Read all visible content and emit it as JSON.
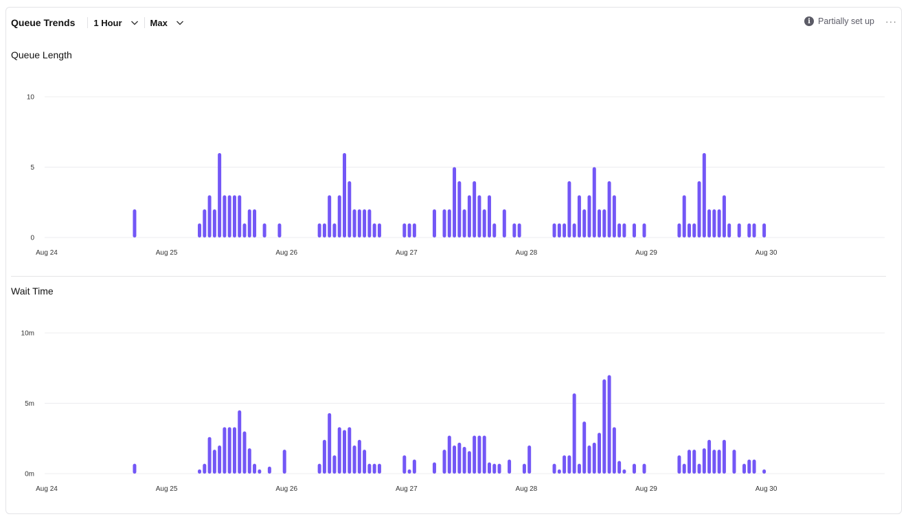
{
  "header": {
    "title": "Queue Trends",
    "interval": "1 Hour",
    "aggregation": "Max",
    "status": "Partially set up",
    "status_icon": "info-icon",
    "more_icon": "more-horizontal-icon"
  },
  "colors": {
    "bar": "#7357F6",
    "grid": "#ececef"
  },
  "chart_data": [
    {
      "type": "bar",
      "title": "Queue Length",
      "xlabel": "",
      "ylabel": "",
      "x_unit": "hour",
      "x_ticks": [
        "Aug 24",
        "Aug 25",
        "Aug 26",
        "Aug 27",
        "Aug 28",
        "Aug 29",
        "Aug 30"
      ],
      "y_ticks": [
        "0",
        "5",
        "10"
      ],
      "ylim": [
        0,
        10
      ],
      "grid": true,
      "x": [
        "Aug 24 18:00",
        "Aug 25 07:00",
        "Aug 25 08:00",
        "Aug 25 09:00",
        "Aug 25 10:00",
        "Aug 25 11:00",
        "Aug 25 12:00",
        "Aug 25 13:00",
        "Aug 25 14:00",
        "Aug 25 15:00",
        "Aug 25 16:00",
        "Aug 25 17:00",
        "Aug 25 18:00",
        "Aug 25 20:00",
        "Aug 25 23:00",
        "Aug 26 07:00",
        "Aug 26 08:00",
        "Aug 26 09:00",
        "Aug 26 10:00",
        "Aug 26 11:00",
        "Aug 26 12:00",
        "Aug 26 13:00",
        "Aug 26 14:00",
        "Aug 26 15:00",
        "Aug 26 16:00",
        "Aug 26 17:00",
        "Aug 26 18:00",
        "Aug 26 19:00",
        "Aug 27 00:00",
        "Aug 27 01:00",
        "Aug 27 02:00",
        "Aug 27 06:00",
        "Aug 27 08:00",
        "Aug 27 09:00",
        "Aug 27 10:00",
        "Aug 27 11:00",
        "Aug 27 12:00",
        "Aug 27 13:00",
        "Aug 27 14:00",
        "Aug 27 15:00",
        "Aug 27 16:00",
        "Aug 27 17:00",
        "Aug 27 18:00",
        "Aug 27 20:00",
        "Aug 27 22:00",
        "Aug 27 23:00",
        "Aug 28 06:00",
        "Aug 28 07:00",
        "Aug 28 08:00",
        "Aug 28 09:00",
        "Aug 28 10:00",
        "Aug 28 11:00",
        "Aug 28 12:00",
        "Aug 28 13:00",
        "Aug 28 14:00",
        "Aug 28 15:00",
        "Aug 28 16:00",
        "Aug 28 17:00",
        "Aug 28 18:00",
        "Aug 28 19:00",
        "Aug 28 20:00",
        "Aug 28 22:00",
        "Aug 29 00:00",
        "Aug 29 07:00",
        "Aug 29 08:00",
        "Aug 29 09:00",
        "Aug 29 10:00",
        "Aug 29 11:00",
        "Aug 29 12:00",
        "Aug 29 13:00",
        "Aug 29 14:00",
        "Aug 29 15:00",
        "Aug 29 16:00",
        "Aug 29 17:00",
        "Aug 29 19:00",
        "Aug 29 21:00",
        "Aug 29 22:00",
        "Aug 30 00:00"
      ],
      "values": [
        2,
        1,
        2,
        3,
        2,
        6,
        3,
        3,
        3,
        3,
        1,
        2,
        2,
        1,
        1,
        1,
        1,
        3,
        1,
        3,
        6,
        4,
        2,
        2,
        2,
        2,
        1,
        1,
        1,
        1,
        1,
        2,
        2,
        2,
        5,
        4,
        2,
        3,
        4,
        3,
        2,
        3,
        1,
        2,
        1,
        1,
        1,
        1,
        1,
        4,
        1,
        3,
        2,
        3,
        5,
        2,
        2,
        4,
        3,
        1,
        1,
        1,
        1,
        1,
        3,
        1,
        1,
        4,
        6,
        2,
        2,
        2,
        3,
        1,
        1,
        1,
        1,
        1
      ]
    },
    {
      "type": "bar",
      "title": "Wait Time",
      "xlabel": "",
      "ylabel": "",
      "x_unit": "hour",
      "x_ticks": [
        "Aug 24",
        "Aug 25",
        "Aug 26",
        "Aug 27",
        "Aug 28",
        "Aug 29",
        "Aug 30"
      ],
      "y_ticks": [
        "0m",
        "5m",
        "10m"
      ],
      "ylim": [
        0,
        10
      ],
      "y_unit": "minutes",
      "grid": true,
      "x": [
        "Aug 24 18:00",
        "Aug 25 07:00",
        "Aug 25 08:00",
        "Aug 25 09:00",
        "Aug 25 10:00",
        "Aug 25 11:00",
        "Aug 25 12:00",
        "Aug 25 13:00",
        "Aug 25 14:00",
        "Aug 25 15:00",
        "Aug 25 16:00",
        "Aug 25 17:00",
        "Aug 25 18:00",
        "Aug 25 19:00",
        "Aug 25 21:00",
        "Aug 26 00:00",
        "Aug 26 07:00",
        "Aug 26 08:00",
        "Aug 26 09:00",
        "Aug 26 10:00",
        "Aug 26 11:00",
        "Aug 26 12:00",
        "Aug 26 13:00",
        "Aug 26 14:00",
        "Aug 26 15:00",
        "Aug 26 16:00",
        "Aug 26 17:00",
        "Aug 26 18:00",
        "Aug 26 19:00",
        "Aug 27 00:00",
        "Aug 27 01:00",
        "Aug 27 02:00",
        "Aug 27 06:00",
        "Aug 27 08:00",
        "Aug 27 09:00",
        "Aug 27 10:00",
        "Aug 27 11:00",
        "Aug 27 12:00",
        "Aug 27 13:00",
        "Aug 27 14:00",
        "Aug 27 15:00",
        "Aug 27 16:00",
        "Aug 27 17:00",
        "Aug 27 18:00",
        "Aug 27 19:00",
        "Aug 27 21:00",
        "Aug 28 00:00",
        "Aug 28 01:00",
        "Aug 28 06:00",
        "Aug 28 07:00",
        "Aug 28 08:00",
        "Aug 28 09:00",
        "Aug 28 10:00",
        "Aug 28 11:00",
        "Aug 28 12:00",
        "Aug 28 13:00",
        "Aug 28 14:00",
        "Aug 28 15:00",
        "Aug 28 16:00",
        "Aug 28 17:00",
        "Aug 28 18:00",
        "Aug 28 19:00",
        "Aug 28 20:00",
        "Aug 28 22:00",
        "Aug 29 00:00",
        "Aug 29 07:00",
        "Aug 29 08:00",
        "Aug 29 09:00",
        "Aug 29 10:00",
        "Aug 29 11:00",
        "Aug 29 12:00",
        "Aug 29 13:00",
        "Aug 29 14:00",
        "Aug 29 15:00",
        "Aug 29 16:00",
        "Aug 29 18:00",
        "Aug 29 20:00",
        "Aug 29 21:00",
        "Aug 29 22:00",
        "Aug 30 00:00"
      ],
      "values": [
        0.7,
        0.3,
        0.7,
        2.6,
        1.7,
        2.0,
        3.3,
        3.3,
        3.3,
        4.5,
        3.0,
        1.8,
        0.7,
        0.3,
        0.5,
        1.7,
        0.7,
        2.4,
        4.3,
        1.3,
        3.3,
        3.1,
        3.3,
        2.0,
        2.4,
        1.7,
        0.7,
        0.7,
        0.7,
        1.3,
        0.3,
        1.0,
        0.8,
        1.7,
        2.7,
        2.0,
        2.2,
        1.9,
        1.6,
        2.7,
        2.7,
        2.7,
        0.8,
        0.7,
        0.7,
        1.0,
        0.7,
        2.0,
        0.7,
        0.3,
        1.3,
        1.3,
        5.7,
        0.7,
        3.7,
        2.0,
        2.2,
        2.9,
        6.7,
        7.0,
        3.3,
        0.9,
        0.3,
        0.7,
        0.7,
        1.3,
        0.7,
        1.7,
        1.7,
        0.7,
        1.8,
        2.4,
        1.7,
        1.7,
        2.4,
        1.7,
        0.7,
        1.0,
        1.0,
        0.3
      ]
    }
  ]
}
